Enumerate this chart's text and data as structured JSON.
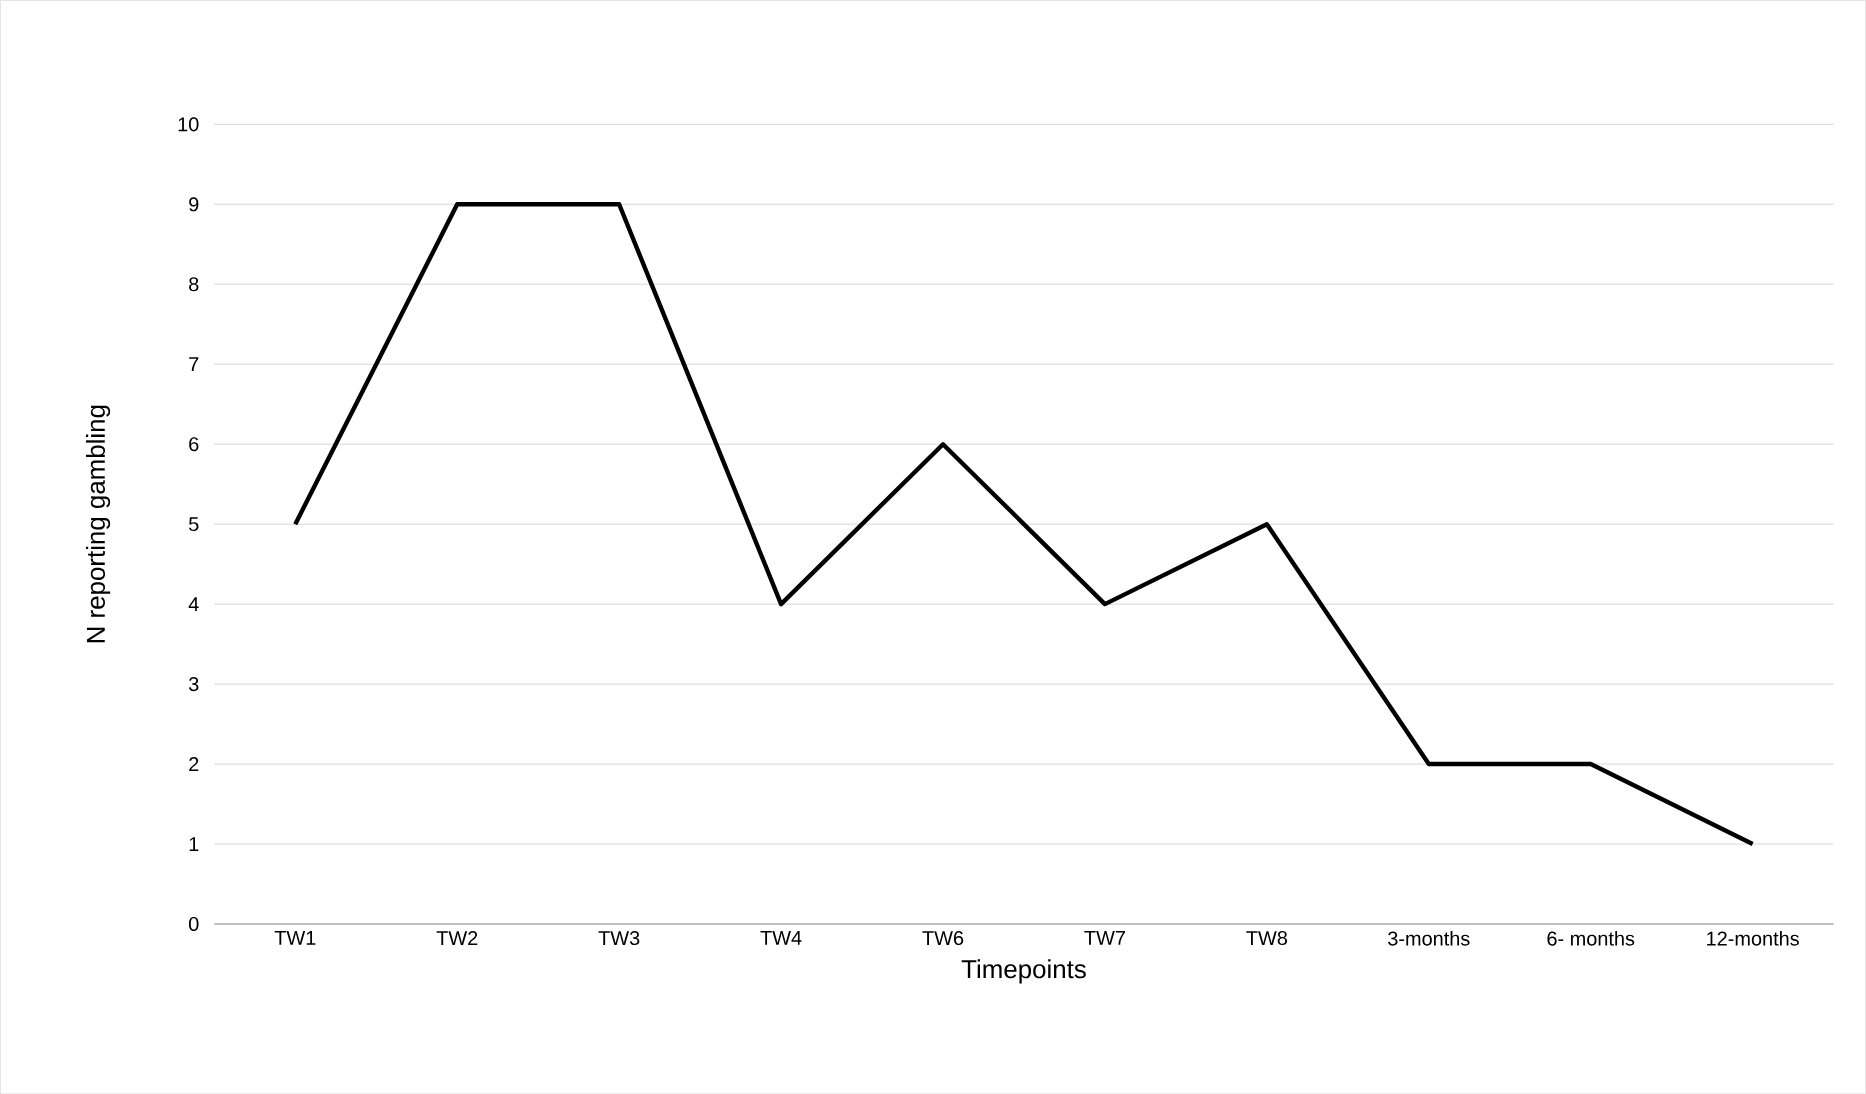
{
  "chart_data": {
    "type": "line",
    "xlabel": "Timepoints",
    "ylabel": "N reporting gambling",
    "categories": [
      "TW1",
      "TW2",
      "TW3",
      "TW4",
      "TW6",
      "TW7",
      "TW8",
      "3-months",
      "6- months",
      "12-months"
    ],
    "series": [
      {
        "color": "#000000",
        "values": [
          5,
          9,
          9,
          4,
          6,
          4,
          5,
          2,
          2,
          1
        ]
      }
    ],
    "ylim": [
      0,
      10
    ],
    "yticks": [
      0,
      1,
      2,
      3,
      4,
      5,
      6,
      7,
      8,
      9,
      10
    ],
    "grid": "y",
    "marker": "none",
    "line_style": "solid"
  }
}
